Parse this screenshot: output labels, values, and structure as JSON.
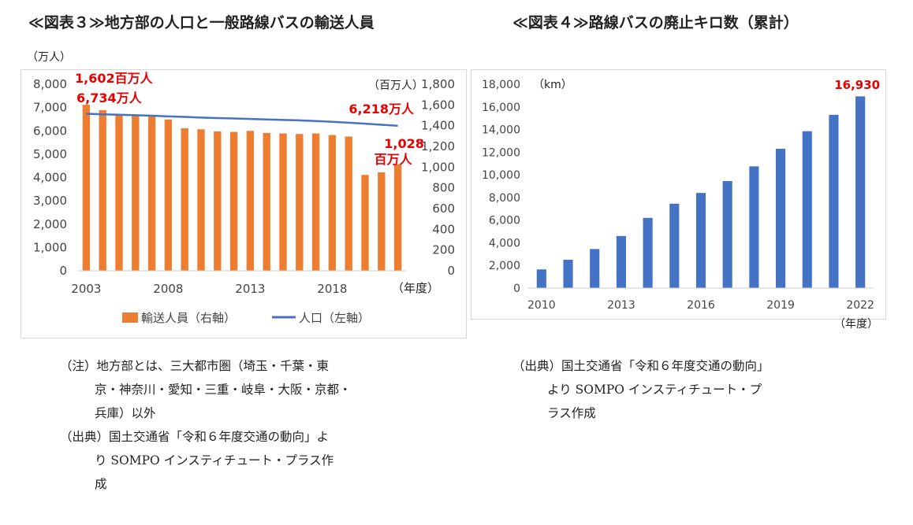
{
  "headings": {
    "left": "≪図表３≫地方部の人口と一般路線バスの輸送人員",
    "right": "≪図表４≫路線バスの廃止キロ数（累計）"
  },
  "chart_data": [
    {
      "type": "bar+line",
      "title": "≪図表３≫地方部の人口と一般路線バスの輸送人員",
      "units": {
        "left": "（万人）",
        "right": "（百万人）",
        "x": "（年度）"
      },
      "x": [
        2003,
        2004,
        2005,
        2006,
        2007,
        2008,
        2009,
        2010,
        2011,
        2012,
        2013,
        2014,
        2015,
        2016,
        2017,
        2018,
        2019,
        2020,
        2021,
        2022
      ],
      "x_tick_labels": [
        "2003",
        "2008",
        "2013",
        "2018"
      ],
      "left_axis": {
        "min": 0,
        "max": 8000,
        "step": 1000,
        "tick_labels": [
          "0",
          "1,000",
          "2,000",
          "3,000",
          "4,000",
          "5,000",
          "6,000",
          "7,000",
          "8,000"
        ]
      },
      "right_axis": {
        "min": 0,
        "max": 1800,
        "step": 200,
        "tick_labels": [
          "0",
          "200",
          "400",
          "600",
          "800",
          "1,000",
          "1,200",
          "1,400",
          "1,600",
          "1,800"
        ]
      },
      "series": [
        {
          "name": "輸送人員（右軸）",
          "kind": "bar",
          "axis": "right",
          "color": "#ED7D31",
          "values": [
            1602,
            1550,
            1510,
            1500,
            1495,
            1460,
            1375,
            1365,
            1345,
            1340,
            1350,
            1330,
            1325,
            1320,
            1325,
            1310,
            1295,
            925,
            950,
            1028
          ]
        },
        {
          "name": "人口（左軸）",
          "kind": "line",
          "axis": "left",
          "color": "#4472C4",
          "values": [
            6734,
            6710,
            6690,
            6670,
            6650,
            6620,
            6600,
            6570,
            6550,
            6530,
            6510,
            6490,
            6470,
            6450,
            6420,
            6390,
            6350,
            6310,
            6260,
            6218
          ]
        }
      ],
      "annotations": [
        {
          "text": "1,602百万人",
          "color": "#E60000"
        },
        {
          "text": "6,734万人",
          "color": "#E60000"
        },
        {
          "text": "6,218万人",
          "color": "#E60000"
        },
        {
          "text": "1,028",
          "color": "#E60000"
        },
        {
          "text": "百万人",
          "color": "#E60000"
        }
      ],
      "legend": [
        {
          "label": "輸送人員（右軸）",
          "color": "#ED7D31"
        },
        {
          "label": "人口（左軸）",
          "color": "#4472C4"
        }
      ],
      "legend_position": "bottom",
      "grid": false
    },
    {
      "type": "bar",
      "title": "≪図表４≫路線バスの廃止キロ数（累計）",
      "units": {
        "y": "（km）",
        "x": "（年度）"
      },
      "x": [
        2010,
        2011,
        2012,
        2013,
        2014,
        2015,
        2016,
        2017,
        2018,
        2019,
        2020,
        2021,
        2022
      ],
      "x_tick_labels": [
        "2010",
        "2013",
        "2016",
        "2019",
        "2022"
      ],
      "y_axis": {
        "min": 0,
        "max": 18000,
        "step": 2000,
        "tick_labels": [
          "0",
          "2,000",
          "4,000",
          "6,000",
          "8,000",
          "10,000",
          "12,000",
          "14,000",
          "16,000",
          "18,000"
        ]
      },
      "series": [
        {
          "name": "廃止キロ数（累計）",
          "color": "#4472C4",
          "values": [
            1650,
            2500,
            3450,
            4600,
            6200,
            7450,
            8400,
            9450,
            10750,
            12300,
            13850,
            15300,
            16930
          ]
        }
      ],
      "annotations": [
        {
          "text": "16,930",
          "color": "#E60000"
        }
      ],
      "grid": false
    }
  ],
  "notes_left": {
    "note1_lead": "（注）地方部とは、三大都市圏（埼玉・千葉・東",
    "note1_line2": "京・神奈川・愛知・三重・岐阜・大阪・京都・",
    "note1_line3": "兵庫）以外",
    "source_lead": "（出典）国土交通省「令和６年度交通の動向」よ",
    "source_line2": "り SOMPO インスティチュート・プラス作",
    "source_line3": "成"
  },
  "notes_right": {
    "source_lead": "（出典）国土交通省「令和６年度交通の動向」",
    "source_line2": "より SOMPO インスティチュート・プ",
    "source_line3": "ラス作成"
  }
}
